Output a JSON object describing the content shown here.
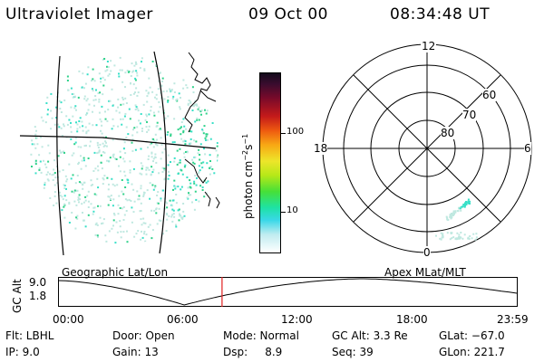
{
  "header": {
    "instrument": "Ultraviolet Imager",
    "date": "09 Oct 00",
    "time": "08:34:48 UT"
  },
  "colorbar": {
    "label": "photon cm",
    "label_exp1": "−2",
    "label_s": "s",
    "label_exp2": "−1",
    "ticks": [
      "100",
      "10"
    ]
  },
  "polar_plot": {
    "mlt_labels": {
      "top": "12",
      "left": "18",
      "right": "6",
      "bottom": "0"
    },
    "lat_labels": [
      "60",
      "70",
      "80"
    ]
  },
  "altitude_plot": {
    "left_title": "Geographic Lat/Lon",
    "right_title": "Apex MLat/MLT",
    "ylabel": "GC Alt",
    "y_ticks": [
      "9.0",
      "1.8"
    ],
    "x_ticks": [
      "00:00",
      "06:00",
      "12:00",
      "18:00",
      "23:59"
    ],
    "current_time_marker_hours": 8.58,
    "marker_color": "#e02020"
  },
  "status": {
    "flt": "Flt: LBHL",
    "ip": "IP:  9.0",
    "door": "Door: Open",
    "gain": "Gain: 13",
    "mode": "Mode: Normal",
    "dsp": "Dsp:     8.9",
    "gc_alt": "GC Alt: 3.3 Re",
    "seq": "Seq: 39",
    "glat": "GLat: −67.0",
    "glon": "GLon: 221.7"
  },
  "colors": {
    "aurora_green": "#2fd28a",
    "aurora_cyan": "#38e0c8",
    "aurora_pale": "#bfe8e0"
  }
}
